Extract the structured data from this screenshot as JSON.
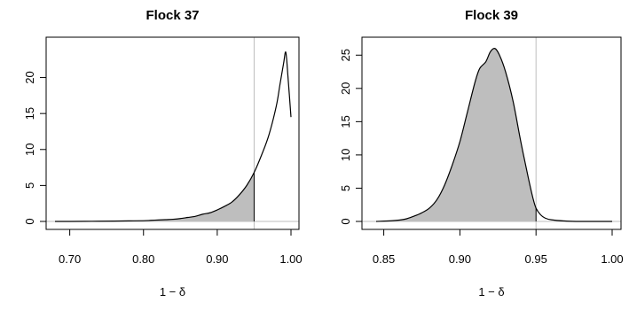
{
  "chart_data": [
    {
      "type": "area",
      "title": "Flock 37",
      "xlabel": "1 − δ",
      "ylabel": "",
      "xlim": [
        0.68,
        1.0
      ],
      "ylim": [
        0,
        24.5
      ],
      "x_ticks": [
        0.7,
        0.8,
        0.9,
        1.0
      ],
      "x_tick_labels": [
        "0.70",
        "0.80",
        "0.90",
        "1.00"
      ],
      "y_ticks": [
        0,
        5,
        10,
        15,
        20
      ],
      "y_tick_labels": [
        "0",
        "5",
        "10",
        "15",
        "20"
      ],
      "reference_line_x": 0.95,
      "shaded_region": "x ≤ 0.95",
      "grid": false,
      "curve_color": "#000000",
      "fill_color": "#bebebe",
      "reference_color": "#bebebe",
      "x": [
        0.68,
        0.7,
        0.72,
        0.74,
        0.76,
        0.78,
        0.8,
        0.81,
        0.82,
        0.83,
        0.84,
        0.85,
        0.86,
        0.87,
        0.88,
        0.89,
        0.9,
        0.91,
        0.92,
        0.93,
        0.94,
        0.95,
        0.96,
        0.97,
        0.98,
        0.985,
        0.99,
        0.993,
        0.996,
        1.0
      ],
      "y": [
        0.0,
        0.0,
        0.02,
        0.03,
        0.05,
        0.08,
        0.1,
        0.15,
        0.2,
        0.25,
        0.3,
        0.4,
        0.55,
        0.7,
        1.0,
        1.2,
        1.6,
        2.1,
        2.7,
        3.7,
        5.0,
        6.8,
        9.2,
        12.0,
        16.0,
        19.0,
        22.0,
        23.5,
        20.0,
        14.5
      ]
    },
    {
      "type": "area",
      "title": "Flock 39",
      "xlabel": "1 − δ",
      "ylabel": "",
      "xlim": [
        0.845,
        1.0
      ],
      "ylim": [
        0,
        26.5
      ],
      "x_ticks": [
        0.85,
        0.9,
        0.95,
        1.0
      ],
      "x_tick_labels": [
        "0.85",
        "0.90",
        "0.95",
        "1.00"
      ],
      "y_ticks": [
        0,
        5,
        10,
        15,
        20,
        25
      ],
      "y_tick_labels": [
        "0",
        "5",
        "10",
        "15",
        "20",
        "25"
      ],
      "reference_line_x": 0.95,
      "shaded_region": "x ≤ 0.95",
      "grid": false,
      "curve_color": "#000000",
      "fill_color": "#bebebe",
      "reference_color": "#bebebe",
      "x": [
        0.845,
        0.855,
        0.86,
        0.865,
        0.87,
        0.875,
        0.88,
        0.885,
        0.89,
        0.895,
        0.9,
        0.905,
        0.91,
        0.913,
        0.917,
        0.92,
        0.923,
        0.926,
        0.93,
        0.935,
        0.94,
        0.945,
        0.948,
        0.95,
        0.953,
        0.956,
        0.96,
        0.97,
        0.98,
        1.0
      ],
      "y": [
        0.0,
        0.1,
        0.2,
        0.4,
        0.8,
        1.3,
        2.0,
        3.3,
        5.5,
        8.5,
        12.0,
        16.5,
        21.0,
        23.0,
        24.0,
        25.5,
        26.0,
        25.0,
        22.5,
        18.0,
        12.0,
        6.5,
        3.5,
        2.0,
        1.0,
        0.5,
        0.25,
        0.05,
        0.0,
        0.0
      ]
    }
  ]
}
